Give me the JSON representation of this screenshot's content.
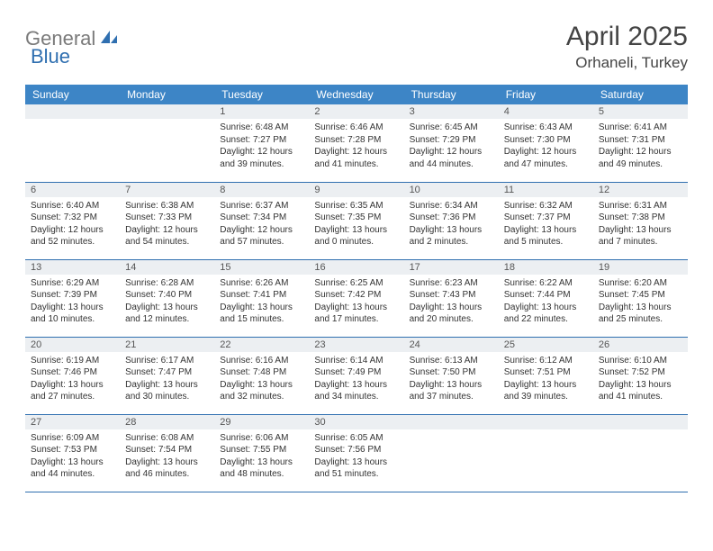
{
  "logo": {
    "text1": "General",
    "text2": "Blue",
    "text1_color": "#7a7a7a",
    "text2_color": "#2f6fb0"
  },
  "title": "April 2025",
  "location": "Orhaneli, Turkey",
  "header_bg": "#3d85c6",
  "daynum_bg": "#eceff2",
  "border_color": "#2f6fb0",
  "columns": [
    "Sunday",
    "Monday",
    "Tuesday",
    "Wednesday",
    "Thursday",
    "Friday",
    "Saturday"
  ],
  "weeks": [
    [
      null,
      null,
      {
        "n": "1",
        "sr": "6:48 AM",
        "ss": "7:27 PM",
        "dl": "12 hours and 39 minutes."
      },
      {
        "n": "2",
        "sr": "6:46 AM",
        "ss": "7:28 PM",
        "dl": "12 hours and 41 minutes."
      },
      {
        "n": "3",
        "sr": "6:45 AM",
        "ss": "7:29 PM",
        "dl": "12 hours and 44 minutes."
      },
      {
        "n": "4",
        "sr": "6:43 AM",
        "ss": "7:30 PM",
        "dl": "12 hours and 47 minutes."
      },
      {
        "n": "5",
        "sr": "6:41 AM",
        "ss": "7:31 PM",
        "dl": "12 hours and 49 minutes."
      }
    ],
    [
      {
        "n": "6",
        "sr": "6:40 AM",
        "ss": "7:32 PM",
        "dl": "12 hours and 52 minutes."
      },
      {
        "n": "7",
        "sr": "6:38 AM",
        "ss": "7:33 PM",
        "dl": "12 hours and 54 minutes."
      },
      {
        "n": "8",
        "sr": "6:37 AM",
        "ss": "7:34 PM",
        "dl": "12 hours and 57 minutes."
      },
      {
        "n": "9",
        "sr": "6:35 AM",
        "ss": "7:35 PM",
        "dl": "13 hours and 0 minutes."
      },
      {
        "n": "10",
        "sr": "6:34 AM",
        "ss": "7:36 PM",
        "dl": "13 hours and 2 minutes."
      },
      {
        "n": "11",
        "sr": "6:32 AM",
        "ss": "7:37 PM",
        "dl": "13 hours and 5 minutes."
      },
      {
        "n": "12",
        "sr": "6:31 AM",
        "ss": "7:38 PM",
        "dl": "13 hours and 7 minutes."
      }
    ],
    [
      {
        "n": "13",
        "sr": "6:29 AM",
        "ss": "7:39 PM",
        "dl": "13 hours and 10 minutes."
      },
      {
        "n": "14",
        "sr": "6:28 AM",
        "ss": "7:40 PM",
        "dl": "13 hours and 12 minutes."
      },
      {
        "n": "15",
        "sr": "6:26 AM",
        "ss": "7:41 PM",
        "dl": "13 hours and 15 minutes."
      },
      {
        "n": "16",
        "sr": "6:25 AM",
        "ss": "7:42 PM",
        "dl": "13 hours and 17 minutes."
      },
      {
        "n": "17",
        "sr": "6:23 AM",
        "ss": "7:43 PM",
        "dl": "13 hours and 20 minutes."
      },
      {
        "n": "18",
        "sr": "6:22 AM",
        "ss": "7:44 PM",
        "dl": "13 hours and 22 minutes."
      },
      {
        "n": "19",
        "sr": "6:20 AM",
        "ss": "7:45 PM",
        "dl": "13 hours and 25 minutes."
      }
    ],
    [
      {
        "n": "20",
        "sr": "6:19 AM",
        "ss": "7:46 PM",
        "dl": "13 hours and 27 minutes."
      },
      {
        "n": "21",
        "sr": "6:17 AM",
        "ss": "7:47 PM",
        "dl": "13 hours and 30 minutes."
      },
      {
        "n": "22",
        "sr": "6:16 AM",
        "ss": "7:48 PM",
        "dl": "13 hours and 32 minutes."
      },
      {
        "n": "23",
        "sr": "6:14 AM",
        "ss": "7:49 PM",
        "dl": "13 hours and 34 minutes."
      },
      {
        "n": "24",
        "sr": "6:13 AM",
        "ss": "7:50 PM",
        "dl": "13 hours and 37 minutes."
      },
      {
        "n": "25",
        "sr": "6:12 AM",
        "ss": "7:51 PM",
        "dl": "13 hours and 39 minutes."
      },
      {
        "n": "26",
        "sr": "6:10 AM",
        "ss": "7:52 PM",
        "dl": "13 hours and 41 minutes."
      }
    ],
    [
      {
        "n": "27",
        "sr": "6:09 AM",
        "ss": "7:53 PM",
        "dl": "13 hours and 44 minutes."
      },
      {
        "n": "28",
        "sr": "6:08 AM",
        "ss": "7:54 PM",
        "dl": "13 hours and 46 minutes."
      },
      {
        "n": "29",
        "sr": "6:06 AM",
        "ss": "7:55 PM",
        "dl": "13 hours and 48 minutes."
      },
      {
        "n": "30",
        "sr": "6:05 AM",
        "ss": "7:56 PM",
        "dl": "13 hours and 51 minutes."
      },
      null,
      null,
      null
    ]
  ],
  "labels": {
    "sunrise": "Sunrise:",
    "sunset": "Sunset:",
    "daylight": "Daylight:"
  }
}
